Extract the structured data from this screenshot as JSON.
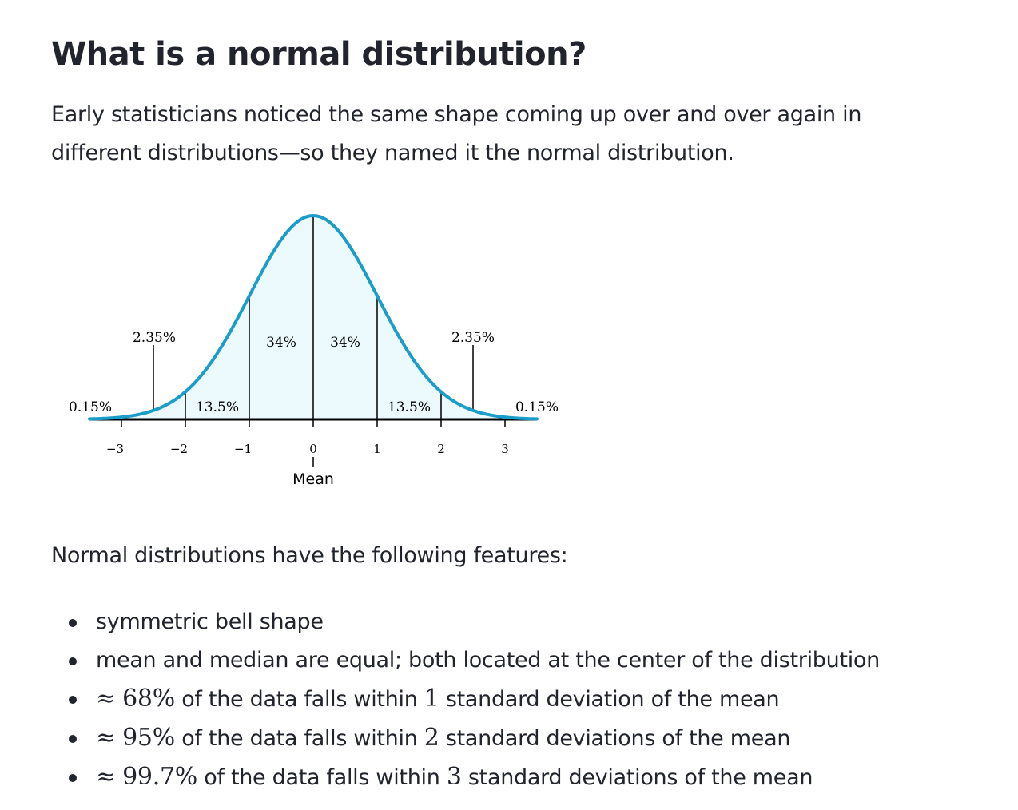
{
  "article": {
    "title": "What is a normal distribution?",
    "intro_line1": "Early statisticians noticed the same shape coming up over and over again in",
    "intro_line2": "different distributions—so they named it the normal distribution.",
    "features_intro": "Normal distributions have the following features:",
    "features": [
      {
        "text": "symmetric bell shape"
      },
      {
        "text": "mean and median are equal; both located at the center of the distribution"
      },
      {
        "approx": "≈",
        "pct": "68%",
        "mid": " of the data falls within ",
        "num": "1",
        "end": " standard deviation of the mean"
      },
      {
        "approx": "≈",
        "pct": "95%",
        "mid": " of the data falls within ",
        "num": "2",
        "end": " standard deviations of the mean"
      },
      {
        "approx": "≈",
        "pct": "99.7%",
        "mid": " of the data falls within ",
        "num": "3",
        "end": " standard deviations of the mean"
      }
    ]
  },
  "chart_data": {
    "type": "area",
    "x_ticks": [
      "−3",
      "−2",
      "−1",
      "0",
      "1",
      "2",
      "3"
    ],
    "mean_label": "Mean",
    "regions": [
      {
        "range": [
          -3.5,
          -3
        ],
        "label": "0.15%"
      },
      {
        "range": [
          -3,
          -2
        ],
        "label": "2.35%"
      },
      {
        "range": [
          -2,
          -1
        ],
        "label": "13.5%"
      },
      {
        "range": [
          -1,
          0
        ],
        "label": "34%"
      },
      {
        "range": [
          0,
          1
        ],
        "label": "34%"
      },
      {
        "range": [
          1,
          2
        ],
        "label": "13.5%"
      },
      {
        "range": [
          2,
          3
        ],
        "label": "2.35%"
      },
      {
        "range": [
          3,
          3.5
        ],
        "label": "0.15%"
      }
    ],
    "xlim": [
      -3.5,
      3.5
    ],
    "curve_color": "#1a9ec9",
    "fill_color": "#ecfafd"
  }
}
